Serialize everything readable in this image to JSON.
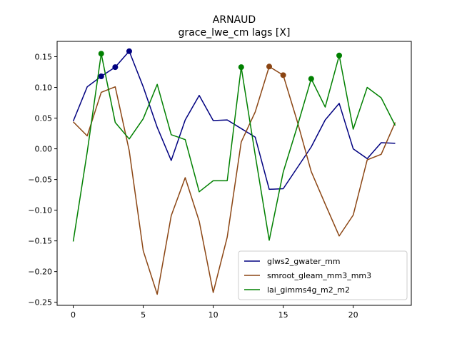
{
  "chart_data": {
    "type": "line",
    "title": "ARNAUD",
    "subtitle": "grace_lwe_cm lags [X]",
    "xlabel": "",
    "ylabel": "",
    "xlim": [
      -1.15,
      24.15
    ],
    "ylim": [
      -0.255,
      0.175
    ],
    "xticks": [
      0,
      5,
      10,
      15,
      20
    ],
    "yticks": [
      -0.25,
      -0.2,
      -0.15,
      -0.1,
      -0.05,
      0.0,
      0.05,
      0.1,
      0.15
    ],
    "ytick_labels": [
      "−0.25",
      "−0.20",
      "−0.15",
      "−0.10",
      "−0.05",
      "0.00",
      "0.05",
      "0.10",
      "0.15"
    ],
    "grid": false,
    "legend_position": "lower-right",
    "x": [
      0,
      1,
      2,
      3,
      4,
      5,
      6,
      7,
      8,
      9,
      10,
      11,
      12,
      13,
      14,
      15,
      16,
      17,
      18,
      19,
      20,
      21,
      22,
      23
    ],
    "series": [
      {
        "name": "glws2_gwater_mm",
        "color": "#000080",
        "values": [
          0.045,
          0.101,
          0.118,
          0.133,
          0.159,
          0.101,
          0.035,
          -0.019,
          0.047,
          0.087,
          0.046,
          0.047,
          0.033,
          0.019,
          -0.066,
          -0.065,
          -0.031,
          0.003,
          0.047,
          0.074,
          0.0,
          -0.016,
          0.01,
          0.009
        ],
        "markers": [
          2,
          3,
          4
        ]
      },
      {
        "name": "smroot_gleam_mm3_mm3",
        "color": "#8b4513",
        "values": [
          0.044,
          0.021,
          0.092,
          0.101,
          -0.003,
          -0.166,
          -0.237,
          -0.109,
          -0.047,
          -0.118,
          -0.234,
          -0.144,
          0.011,
          0.06,
          0.134,
          0.12,
          0.045,
          -0.037,
          -0.09,
          -0.142,
          -0.108,
          -0.018,
          -0.009,
          0.043
        ],
        "markers": [
          14,
          15
        ]
      },
      {
        "name": "lai_gimms4g_m2_m2",
        "color": "#008000",
        "values": [
          -0.151,
          -0.005,
          0.155,
          0.043,
          0.016,
          0.049,
          0.105,
          0.023,
          0.015,
          -0.07,
          -0.052,
          -0.052,
          0.133,
          -0.01,
          -0.149,
          -0.038,
          0.036,
          0.114,
          0.068,
          0.152,
          0.032,
          0.1,
          0.083,
          0.038
        ],
        "markers": [
          2,
          12,
          17,
          19
        ]
      }
    ]
  }
}
